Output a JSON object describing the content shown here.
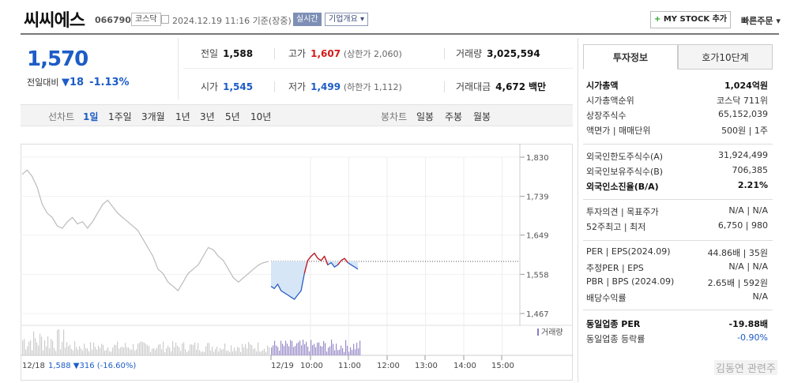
{
  "header": {
    "name": "씨씨에스",
    "code": "066790",
    "market": "코스닥",
    "datetime": "2024.12.19 11:16 기준(장중)",
    "realtime": "실시간",
    "overview": "기업개요",
    "mystock": "MY STOCK 추가",
    "quick_order": "빠른주문"
  },
  "price": {
    "current": "1,570",
    "change_label": "전일대비",
    "change": "18",
    "change_pct": "-1.13%"
  },
  "stats": {
    "prev_label": "전일",
    "prev": "1,588",
    "high_label": "고가",
    "high": "1,607",
    "upper_limit": "(상한가 2,060)",
    "volume_label": "거래량",
    "volume": "3,025,594",
    "open_label": "시가",
    "open": "1,545",
    "low_label": "저가",
    "low": "1,499",
    "lower_limit": "(하한가 1,112)",
    "amount_label": "거래대금",
    "amount": "4,672",
    "amount_unit": "백만"
  },
  "tabs": {
    "line_label": "선차트",
    "periods": [
      "1일",
      "1주일",
      "3개월",
      "1년",
      "3년",
      "5년",
      "10년"
    ],
    "candle_label": "봉차트",
    "candles": [
      "일봉",
      "주봉",
      "월봉"
    ]
  },
  "chart_data": {
    "type": "line",
    "y_ticks": [
      "1,830",
      "1,739",
      "1,649",
      "1,558",
      "1,467"
    ],
    "ylim": [
      1467,
      1830
    ],
    "x_ticks": [
      "12/19",
      "10:00",
      "11:00",
      "12:00",
      "13:00",
      "14:00",
      "15:00"
    ],
    "prev_day_label": "12/18",
    "prev_day_summary": "1,588 ▼316 (-16.60%)",
    "volume_legend": "거래량",
    "prev_close": 1588,
    "prev_day": [
      1790,
      1800,
      1785,
      1760,
      1720,
      1700,
      1690,
      1670,
      1665,
      1680,
      1690,
      1675,
      1680,
      1665,
      1680,
      1700,
      1720,
      1730,
      1715,
      1700,
      1690,
      1680,
      1670,
      1660,
      1640,
      1620,
      1600,
      1570,
      1560,
      1540,
      1530,
      1520,
      1540,
      1560,
      1570,
      1580,
      1600,
      1620,
      1615,
      1600,
      1590,
      1570,
      1550,
      1540,
      1550,
      1560,
      1570,
      1580,
      1585,
      1588
    ],
    "today": [
      1530,
      1525,
      1535,
      1520,
      1515,
      1510,
      1505,
      1500,
      1510,
      1520,
      1560,
      1590,
      1600,
      1607,
      1595,
      1590,
      1600,
      1580,
      1585,
      1575,
      1580,
      1590,
      1595,
      1585,
      1580,
      1575,
      1570
    ]
  },
  "invest": {
    "tab1": "투자정보",
    "tab2": "호가10단계",
    "rows1": [
      {
        "k": "시가총액",
        "v": "1,024억원"
      },
      {
        "k": "시가총액순위",
        "v": "코스닥 711위"
      },
      {
        "k": "상장주식수",
        "v": "65,152,039"
      },
      {
        "k": "액면가 | 매매단위",
        "v": "500원 | 1주"
      }
    ],
    "rows2": [
      {
        "k": "외국인한도주식수(A)",
        "v": "31,924,499"
      },
      {
        "k": "외국인보유주식수(B)",
        "v": "706,385"
      },
      {
        "k": "외국인소진율(B/A)",
        "v": "2.21%"
      }
    ],
    "rows3": [
      {
        "k": "투자의견 | 목표주가",
        "v": "N/A | N/A"
      },
      {
        "k": "52주최고 | 최저",
        "v": "6,750 | 980"
      }
    ],
    "rows4": [
      {
        "k": "PER | EPS(2024.09)",
        "v": "44.86배 | 35원"
      },
      {
        "k": "추정PER | EPS",
        "v": "N/A | N/A"
      },
      {
        "k": "PBR | BPS (2024.09)",
        "v": "2.65배 | 592원"
      },
      {
        "k": "배당수익률",
        "v": "N/A"
      }
    ],
    "rows5": [
      {
        "k": "동일업종 PER",
        "v": "-19.88배"
      },
      {
        "k": "동일업종 등락률",
        "v": "-0.90%"
      }
    ]
  },
  "watermark": "김동연 관련주"
}
